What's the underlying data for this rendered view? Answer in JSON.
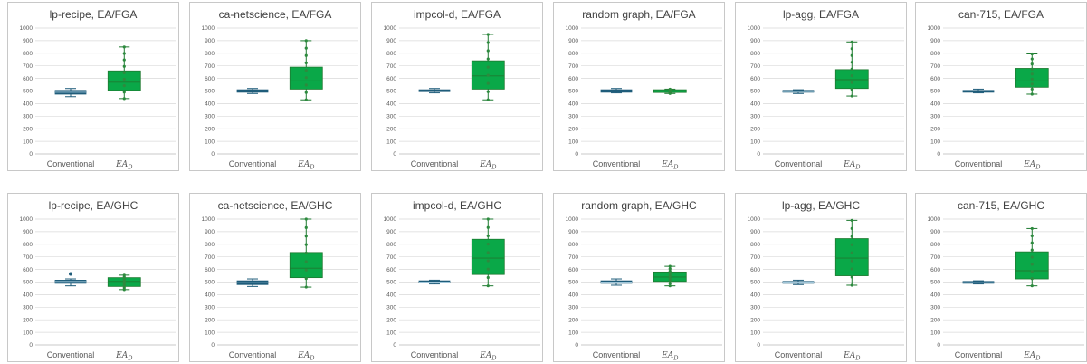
{
  "colors": {
    "conventional": "#1f5c7a",
    "ead": "#0aa848",
    "ead_edge": "#1e7a30",
    "grid": "#d9d9d9",
    "axis": "#bfbfbf"
  },
  "chart_data": [
    {
      "type": "box",
      "title": "lp-recipe, EA/FGA",
      "categories": [
        "Conventional",
        "EA_D"
      ],
      "ylim": [
        0,
        1000
      ],
      "yticks": [
        0,
        100,
        200,
        300,
        400,
        500,
        600,
        700,
        800,
        900,
        1000
      ],
      "grid": true,
      "series": [
        {
          "name": "Conventional",
          "min": 455,
          "q1": 475,
          "median": 490,
          "q3": 505,
          "max": 520,
          "outliers": []
        },
        {
          "name": "EA_D",
          "min": 440,
          "q1": 505,
          "median": 570,
          "q3": 660,
          "max": 850,
          "outliers": []
        }
      ]
    },
    {
      "type": "box",
      "title": "ca-netscience, EA/FGA",
      "categories": [
        "Conventional",
        "EA_D"
      ],
      "ylim": [
        0,
        1000
      ],
      "yticks": [
        0,
        100,
        200,
        300,
        400,
        500,
        600,
        700,
        800,
        900,
        1000
      ],
      "grid": true,
      "series": [
        {
          "name": "Conventional",
          "min": 480,
          "q1": 490,
          "median": 500,
          "q3": 510,
          "max": 520,
          "outliers": []
        },
        {
          "name": "EA_D",
          "min": 430,
          "q1": 515,
          "median": 580,
          "q3": 690,
          "max": 900,
          "outliers": []
        }
      ]
    },
    {
      "type": "box",
      "title": "impcol-d, EA/FGA",
      "categories": [
        "Conventional",
        "EA_D"
      ],
      "ylim": [
        0,
        1000
      ],
      "yticks": [
        0,
        100,
        200,
        300,
        400,
        500,
        600,
        700,
        800,
        900,
        1000
      ],
      "grid": true,
      "series": [
        {
          "name": "Conventional",
          "min": 485,
          "q1": 495,
          "median": 500,
          "q3": 510,
          "max": 520,
          "outliers": []
        },
        {
          "name": "EA_D",
          "min": 430,
          "q1": 515,
          "median": 620,
          "q3": 740,
          "max": 950,
          "outliers": []
        }
      ]
    },
    {
      "type": "box",
      "title": "random graph, EA/FGA",
      "categories": [
        "Conventional",
        "EA_D"
      ],
      "ylim": [
        0,
        1000
      ],
      "yticks": [
        0,
        100,
        200,
        300,
        400,
        500,
        600,
        700,
        800,
        900,
        1000
      ],
      "grid": true,
      "series": [
        {
          "name": "Conventional",
          "min": 485,
          "q1": 490,
          "median": 500,
          "q3": 510,
          "max": 520,
          "outliers": []
        },
        {
          "name": "EA_D",
          "min": 480,
          "q1": 488,
          "median": 500,
          "q3": 510,
          "max": 515,
          "outliers": []
        }
      ]
    },
    {
      "type": "box",
      "title": "lp-agg, EA/FGA",
      "categories": [
        "Conventional",
        "EA_D"
      ],
      "ylim": [
        0,
        1000
      ],
      "yticks": [
        0,
        100,
        200,
        300,
        400,
        500,
        600,
        700,
        800,
        900,
        1000
      ],
      "grid": true,
      "series": [
        {
          "name": "Conventional",
          "min": 480,
          "q1": 490,
          "median": 495,
          "q3": 505,
          "max": 510,
          "outliers": []
        },
        {
          "name": "EA_D",
          "min": 460,
          "q1": 520,
          "median": 590,
          "q3": 670,
          "max": 890,
          "outliers": []
        }
      ]
    },
    {
      "type": "box",
      "title": "can-715, EA/FGA",
      "categories": [
        "Conventional",
        "EA_D"
      ],
      "ylim": [
        0,
        1000
      ],
      "yticks": [
        0,
        100,
        200,
        300,
        400,
        500,
        600,
        700,
        800,
        900,
        1000
      ],
      "grid": true,
      "series": [
        {
          "name": "Conventional",
          "min": 485,
          "q1": 490,
          "median": 500,
          "q3": 505,
          "max": 515,
          "outliers": []
        },
        {
          "name": "EA_D",
          "min": 475,
          "q1": 530,
          "median": 580,
          "q3": 680,
          "max": 795,
          "outliers": []
        }
      ]
    },
    {
      "type": "box",
      "title": "lp-recipe, EA/GHC",
      "categories": [
        "Conventional",
        "EA_D"
      ],
      "ylim": [
        0,
        1000
      ],
      "yticks": [
        0,
        100,
        200,
        300,
        400,
        500,
        600,
        700,
        800,
        900,
        1000
      ],
      "grid": true,
      "series": [
        {
          "name": "Conventional",
          "min": 470,
          "q1": 490,
          "median": 505,
          "q3": 515,
          "max": 525,
          "outliers": [
            565
          ]
        },
        {
          "name": "EA_D",
          "min": 440,
          "q1": 465,
          "median": 505,
          "q3": 535,
          "max": 555,
          "outliers": []
        }
      ]
    },
    {
      "type": "box",
      "title": "ca-netscience, EA/GHC",
      "categories": [
        "Conventional",
        "EA_D"
      ],
      "ylim": [
        0,
        1000
      ],
      "yticks": [
        0,
        100,
        200,
        300,
        400,
        500,
        600,
        700,
        800,
        900,
        1000
      ],
      "grid": true,
      "series": [
        {
          "name": "Conventional",
          "min": 465,
          "q1": 480,
          "median": 495,
          "q3": 510,
          "max": 525,
          "outliers": []
        },
        {
          "name": "EA_D",
          "min": 460,
          "q1": 535,
          "median": 610,
          "q3": 735,
          "max": 1000,
          "outliers": []
        }
      ]
    },
    {
      "type": "box",
      "title": "impcol-d, EA/GHC",
      "categories": [
        "Conventional",
        "EA_D"
      ],
      "ylim": [
        0,
        1000
      ],
      "yticks": [
        0,
        100,
        200,
        300,
        400,
        500,
        600,
        700,
        800,
        900,
        1000
      ],
      "grid": true,
      "series": [
        {
          "name": "Conventional",
          "min": 485,
          "q1": 495,
          "median": 500,
          "q3": 510,
          "max": 515,
          "outliers": []
        },
        {
          "name": "EA_D",
          "min": 470,
          "q1": 560,
          "median": 690,
          "q3": 840,
          "max": 1000,
          "outliers": []
        }
      ]
    },
    {
      "type": "box",
      "title": "random graph, EA/GHC",
      "categories": [
        "Conventional",
        "EA_D"
      ],
      "ylim": [
        0,
        1000
      ],
      "yticks": [
        0,
        100,
        200,
        300,
        400,
        500,
        600,
        700,
        800,
        900,
        1000
      ],
      "grid": true,
      "series": [
        {
          "name": "Conventional",
          "min": 475,
          "q1": 490,
          "median": 500,
          "q3": 510,
          "max": 525,
          "outliers": []
        },
        {
          "name": "EA_D",
          "min": 470,
          "q1": 505,
          "median": 540,
          "q3": 580,
          "max": 625,
          "outliers": []
        }
      ]
    },
    {
      "type": "box",
      "title": "lp-agg, EA/GHC",
      "categories": [
        "Conventional",
        "EA_D"
      ],
      "ylim": [
        0,
        1000
      ],
      "yticks": [
        0,
        100,
        200,
        300,
        400,
        500,
        600,
        700,
        800,
        900,
        1000
      ],
      "grid": true,
      "series": [
        {
          "name": "Conventional",
          "min": 480,
          "q1": 490,
          "median": 500,
          "q3": 505,
          "max": 515,
          "outliers": []
        },
        {
          "name": "EA_D",
          "min": 475,
          "q1": 550,
          "median": 690,
          "q3": 845,
          "max": 990,
          "outliers": []
        }
      ]
    },
    {
      "type": "box",
      "title": "can-715, EA/GHC",
      "categories": [
        "Conventional",
        "EA_D"
      ],
      "ylim": [
        0,
        1000
      ],
      "yticks": [
        0,
        100,
        200,
        300,
        400,
        500,
        600,
        700,
        800,
        900,
        1000
      ],
      "grid": true,
      "series": [
        {
          "name": "Conventional",
          "min": 485,
          "q1": 490,
          "median": 495,
          "q3": 505,
          "max": 510,
          "outliers": []
        },
        {
          "name": "EA_D",
          "min": 470,
          "q1": 525,
          "median": 590,
          "q3": 740,
          "max": 925,
          "outliers": []
        }
      ]
    }
  ]
}
